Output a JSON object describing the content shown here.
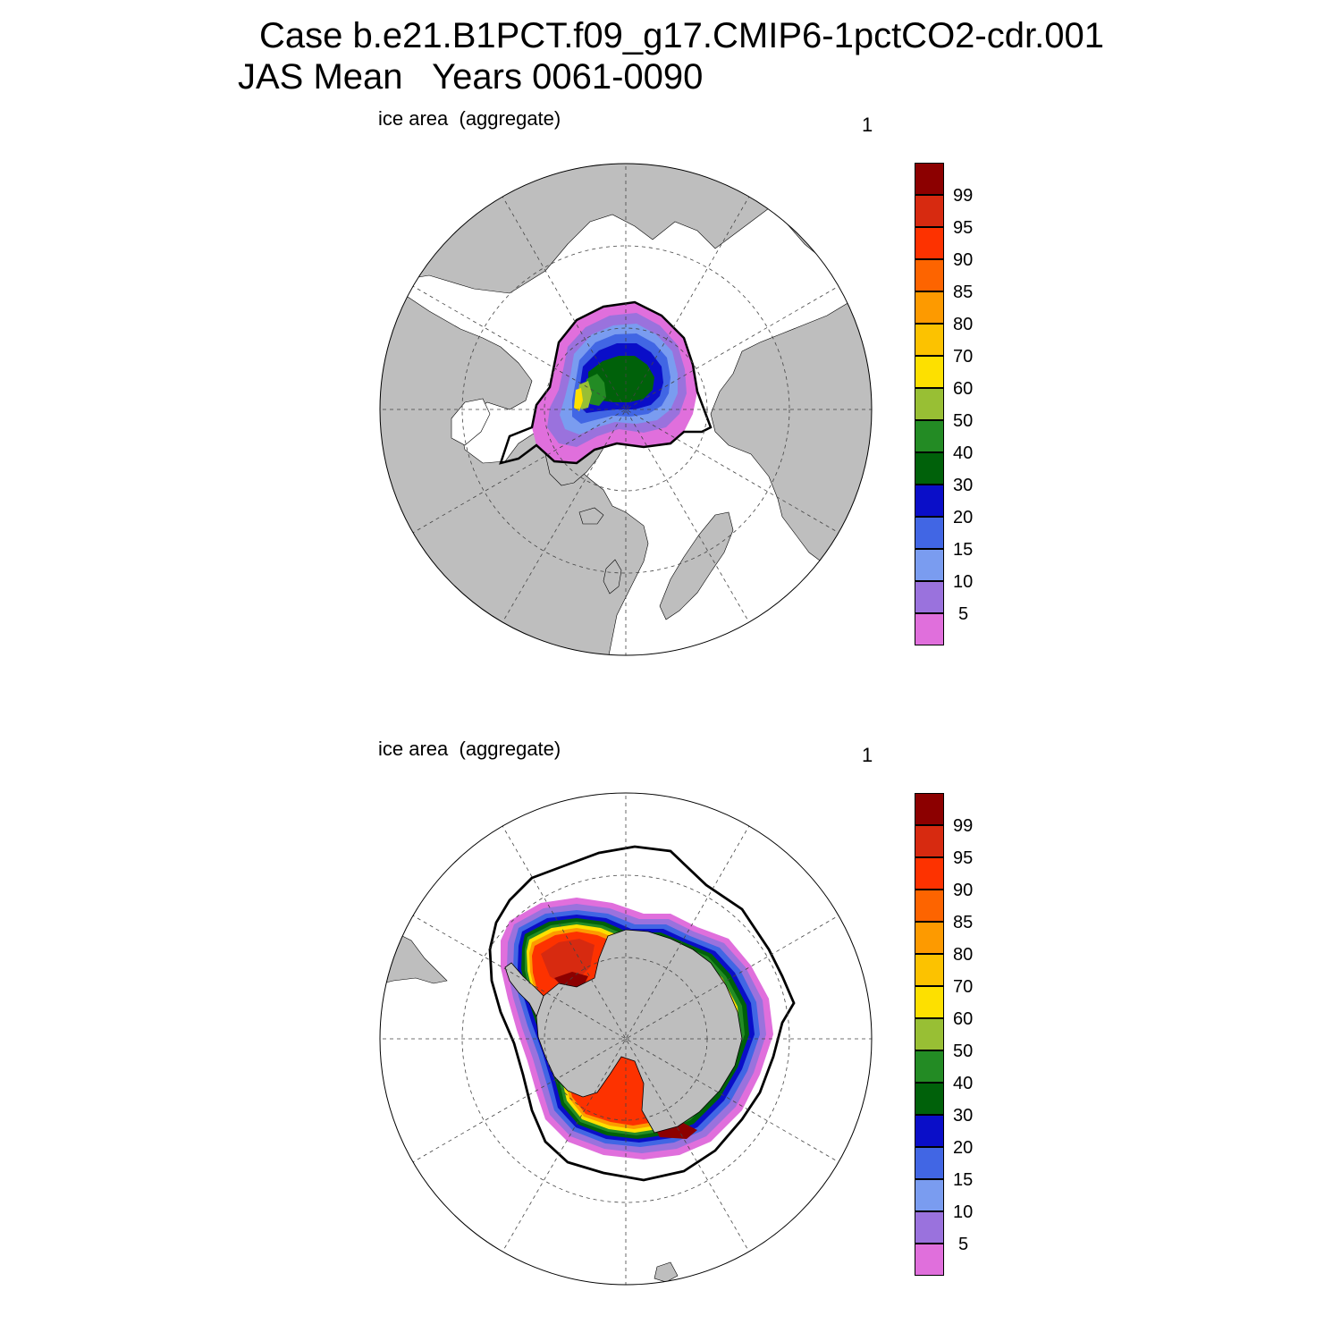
{
  "title": {
    "case_line": "Case b.e21.B1PCT.f09_g17.CMIP6-1pctCO2-cdr.001",
    "period_line": "JAS Mean   Years 0061-0090"
  },
  "panels": [
    {
      "hemisphere": "Northern Hemisphere",
      "subtitle": "ice area  (aggregate)",
      "panel_number": "1"
    },
    {
      "hemisphere": "Southern Hemisphere",
      "subtitle": "ice area  (aggregate)",
      "panel_number": "1"
    }
  ],
  "colorbar": {
    "levels": [
      "5",
      "10",
      "15",
      "20",
      "30",
      "40",
      "50",
      "60",
      "70",
      "80",
      "85",
      "90",
      "95",
      "99"
    ],
    "colors": [
      "#e06fdc",
      "#9a72dd",
      "#7a9cf0",
      "#4166e4",
      "#0a0ec8",
      "#00610a",
      "#238b24",
      "#98bf34",
      "#fde000",
      "#fcc200",
      "#fd9a00",
      "#fd6400",
      "#fd3200",
      "#d72a10",
      "#8c0000"
    ]
  },
  "colors": {
    "land": "#bebebe",
    "ocean": "#ffffff",
    "contour": "#000000"
  }
}
